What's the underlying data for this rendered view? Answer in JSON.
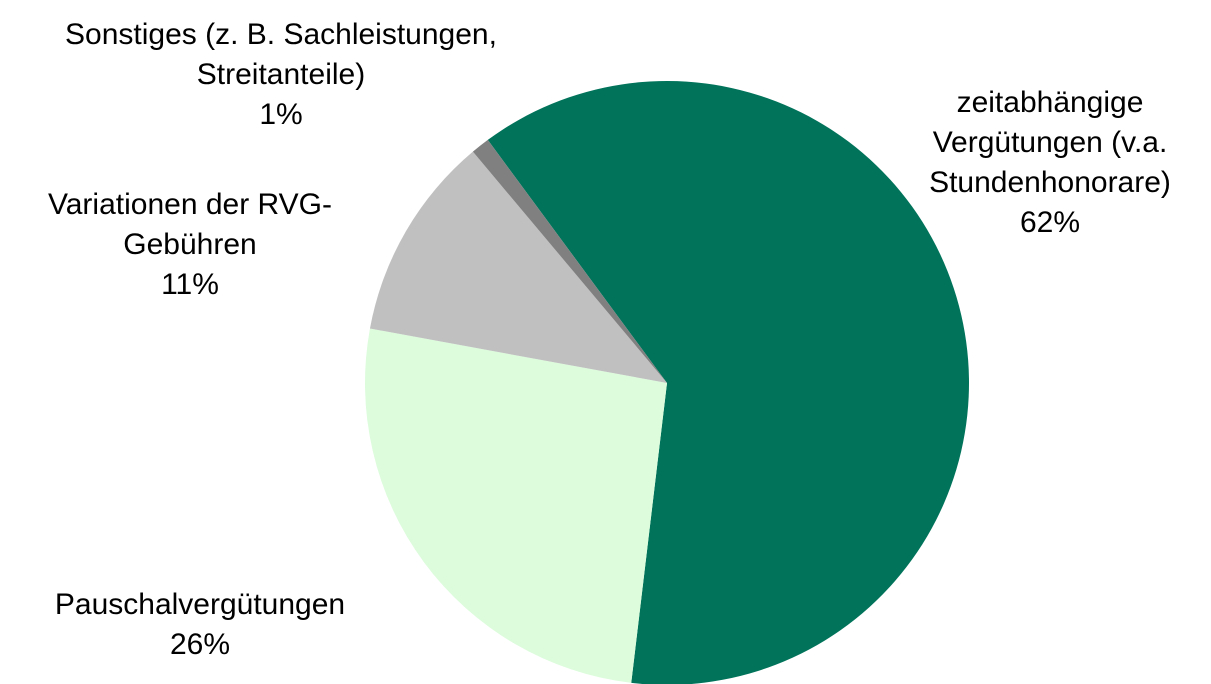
{
  "chart_data": {
    "type": "pie",
    "categories": [
      "zeitabhängige Vergütungen (v.a. Stundenhonorare)",
      "Pauschalvergütungen",
      "Variationen der RVG-Gebühren",
      "Sonstiges (z. B. Sachleistungen, Streitanteile)"
    ],
    "values": [
      62,
      26,
      11,
      1
    ],
    "value_labels": [
      "62%",
      "26%",
      "11%",
      "1%"
    ],
    "colors": [
      "#00735a",
      "#dcfcdc",
      "#c0c0c0",
      "#808080"
    ]
  }
}
